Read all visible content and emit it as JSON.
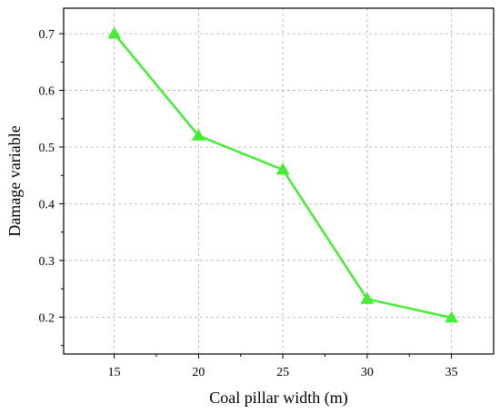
{
  "chart_data": {
    "type": "line",
    "x": [
      15,
      20,
      25,
      30,
      35
    ],
    "series": [
      {
        "values": [
          0.7,
          0.52,
          0.46,
          0.232,
          0.199
        ],
        "color": "#44ee33",
        "marker": "triangle"
      }
    ],
    "xlabel": "Coal pillar width (m)",
    "ylabel": "Damage variable",
    "xlim": [
      12.0,
      37.5
    ],
    "ylim": [
      0.135,
      0.745
    ],
    "xticks": [
      "15",
      "20",
      "25",
      "30",
      "35"
    ],
    "yticks": [
      "0.2",
      "0.3",
      "0.4",
      "0.5",
      "0.6",
      "0.7"
    ],
    "grid": true,
    "legend": "none"
  }
}
